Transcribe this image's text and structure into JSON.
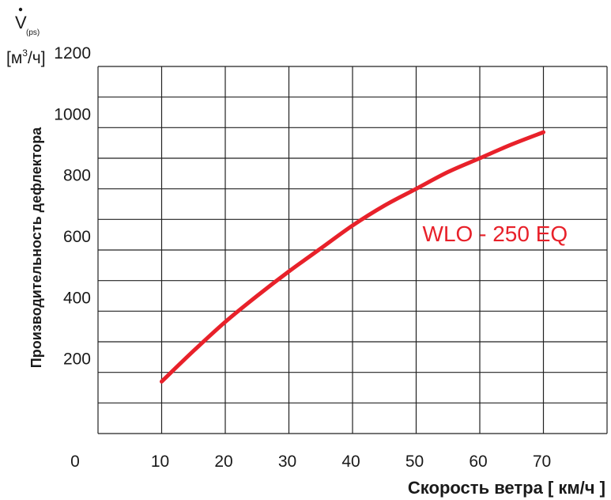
{
  "chart_data": {
    "type": "line",
    "title": "",
    "xlabel": "Скорость ветра [ км/ч ]",
    "ylabel": "Производительность дефлектора",
    "y_symbol": "V",
    "y_symbol_subscript": "(ps)",
    "y_unit_open": "[м",
    "y_unit_sup": "3",
    "y_unit_close": "/ч]",
    "xlim": [
      0,
      80
    ],
    "ylim": [
      0,
      1200
    ],
    "x_ticks": [
      0,
      10,
      20,
      30,
      40,
      50,
      60,
      70
    ],
    "y_ticks": [
      200,
      400,
      600,
      800,
      1000,
      1200
    ],
    "grid": true,
    "series": [
      {
        "name": "WLO - 250 EQ",
        "color": "#e8212a",
        "x": [
          10,
          15,
          20,
          25,
          30,
          35,
          40,
          45,
          50,
          55,
          60,
          65,
          70
        ],
        "y": [
          170,
          270,
          365,
          450,
          530,
          605,
          680,
          745,
          800,
          855,
          900,
          945,
          985
        ]
      }
    ]
  }
}
